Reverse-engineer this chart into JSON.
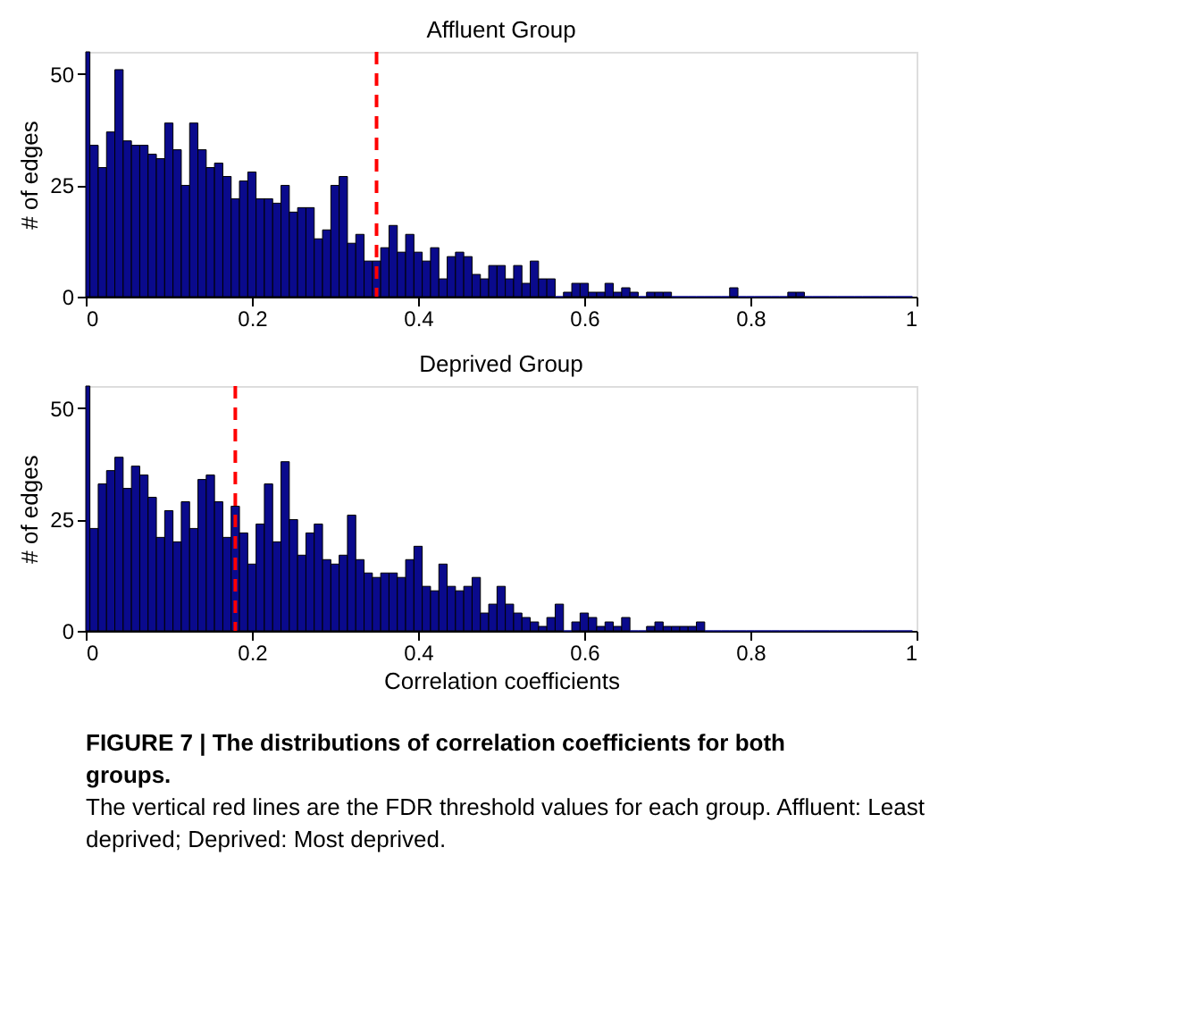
{
  "chart_data": [
    {
      "type": "histogram",
      "title": "Affluent Group",
      "ylabel": "# of edges",
      "bins": [
        0,
        0.005,
        0.015,
        0.025,
        0.035,
        0.045,
        0.055,
        0.065,
        0.075,
        0.085,
        0.095,
        0.105,
        0.115,
        0.125,
        0.135,
        0.145,
        0.155,
        0.165,
        0.175,
        0.185,
        0.195,
        0.205,
        0.215,
        0.225,
        0.235,
        0.245,
        0.255,
        0.265,
        0.275,
        0.285,
        0.295,
        0.305,
        0.315,
        0.325,
        0.335,
        0.345,
        0.355,
        0.365,
        0.375,
        0.385,
        0.395,
        0.405,
        0.415,
        0.425,
        0.435,
        0.445,
        0.455,
        0.465,
        0.475,
        0.485,
        0.495,
        0.505,
        0.515,
        0.525,
        0.535,
        0.545,
        0.555,
        0.565,
        0.575,
        0.585,
        0.595,
        0.605,
        0.615,
        0.625,
        0.635,
        0.645,
        0.655,
        0.665,
        0.675,
        0.685,
        0.695,
        0.705,
        0.715,
        0.725,
        0.735,
        0.745,
        0.755,
        0.765,
        0.775,
        0.785,
        0.795,
        0.805,
        0.815,
        0.825,
        0.835,
        0.845,
        0.855,
        0.865,
        0.875,
        0.885,
        0.895,
        0.905,
        0.915,
        0.925,
        0.935,
        0.945,
        0.955,
        0.965,
        0.975,
        0.985,
        0.995
      ],
      "values": [
        55,
        34,
        29,
        37,
        51,
        35,
        34,
        34,
        32,
        31,
        39,
        33,
        25,
        39,
        33,
        29,
        30,
        27,
        22,
        26,
        28,
        22,
        22,
        21,
        25,
        19,
        20,
        20,
        13,
        15,
        25,
        27,
        12,
        14,
        8,
        8,
        11,
        16,
        10,
        14,
        10,
        8,
        11,
        4,
        9,
        10,
        9,
        5,
        4,
        7,
        7,
        4,
        7,
        3,
        8,
        4,
        4,
        0,
        1,
        3,
        3,
        1,
        1,
        3,
        1,
        2,
        1,
        0,
        1,
        1,
        1,
        0,
        0,
        0,
        0,
        0,
        0,
        0,
        2,
        0,
        0,
        0,
        0,
        0,
        0,
        1,
        1,
        0,
        0,
        0,
        0,
        0,
        0,
        0,
        0,
        0,
        0,
        0,
        0,
        0
      ],
      "color": "#0a0a8c",
      "xlim": [
        0,
        1
      ],
      "xticks": [
        0,
        0.2,
        0.4,
        0.6,
        0.8,
        1
      ],
      "ylim": [
        0,
        55
      ],
      "yticks": [
        0,
        25,
        50
      ],
      "grid": false,
      "ref_lines": [
        {
          "axis": "x",
          "value": 0.35,
          "color": "#ff0000",
          "line_style": "dashed"
        }
      ]
    },
    {
      "type": "histogram",
      "title": "Deprived Group",
      "xlabel": "Correlation coefficients",
      "ylabel": "# of edges",
      "bins": [
        0,
        0.005,
        0.015,
        0.025,
        0.035,
        0.045,
        0.055,
        0.065,
        0.075,
        0.085,
        0.095,
        0.105,
        0.115,
        0.125,
        0.135,
        0.145,
        0.155,
        0.165,
        0.175,
        0.185,
        0.195,
        0.205,
        0.215,
        0.225,
        0.235,
        0.245,
        0.255,
        0.265,
        0.275,
        0.285,
        0.295,
        0.305,
        0.315,
        0.325,
        0.335,
        0.345,
        0.355,
        0.365,
        0.375,
        0.385,
        0.395,
        0.405,
        0.415,
        0.425,
        0.435,
        0.445,
        0.455,
        0.465,
        0.475,
        0.485,
        0.495,
        0.505,
        0.515,
        0.525,
        0.535,
        0.545,
        0.555,
        0.565,
        0.575,
        0.585,
        0.595,
        0.605,
        0.615,
        0.625,
        0.635,
        0.645,
        0.655,
        0.665,
        0.675,
        0.685,
        0.695,
        0.705,
        0.715,
        0.725,
        0.735,
        0.745,
        0.755,
        0.765,
        0.775,
        0.785,
        0.795,
        0.805,
        0.815,
        0.825,
        0.835,
        0.845,
        0.855,
        0.865,
        0.875,
        0.885,
        0.895,
        0.905,
        0.915,
        0.925,
        0.935,
        0.945,
        0.955,
        0.965,
        0.975,
        0.985,
        0.995
      ],
      "values": [
        55,
        23,
        33,
        36,
        39,
        32,
        37,
        35,
        30,
        21,
        27,
        20,
        29,
        23,
        34,
        35,
        29,
        21,
        28,
        22,
        15,
        24,
        33,
        20,
        38,
        25,
        17,
        22,
        24,
        16,
        15,
        17,
        26,
        16,
        13,
        12,
        13,
        13,
        12,
        16,
        19,
        10,
        9,
        15,
        10,
        9,
        10,
        12,
        4,
        6,
        10,
        6,
        4,
        3,
        2,
        1,
        3,
        6,
        0,
        2,
        4,
        3,
        1,
        2,
        1,
        3,
        0,
        0,
        1,
        2,
        1,
        1,
        1,
        1,
        2,
        0,
        0,
        0,
        0,
        0,
        0,
        0,
        0,
        0,
        0,
        0,
        0,
        0,
        0,
        0,
        0,
        0,
        0,
        0,
        0,
        0,
        0,
        0,
        0,
        0
      ],
      "color": "#0a0a8c",
      "xlim": [
        0,
        1
      ],
      "xticks": [
        0,
        0.2,
        0.4,
        0.6,
        0.8,
        1
      ],
      "ylim": [
        0,
        55
      ],
      "yticks": [
        0,
        25,
        50
      ],
      "grid": false,
      "ref_lines": [
        {
          "axis": "x",
          "value": 0.18,
          "color": "#ff0000",
          "line_style": "dashed"
        }
      ],
      "annotations": [
        "FIGURE 7 | The distributions of correlation coefficients for both groups.",
        "The vertical red lines are the FDR threshold values for each group. Affluent: Least deprived; Deprived: Most deprived."
      ]
    }
  ]
}
